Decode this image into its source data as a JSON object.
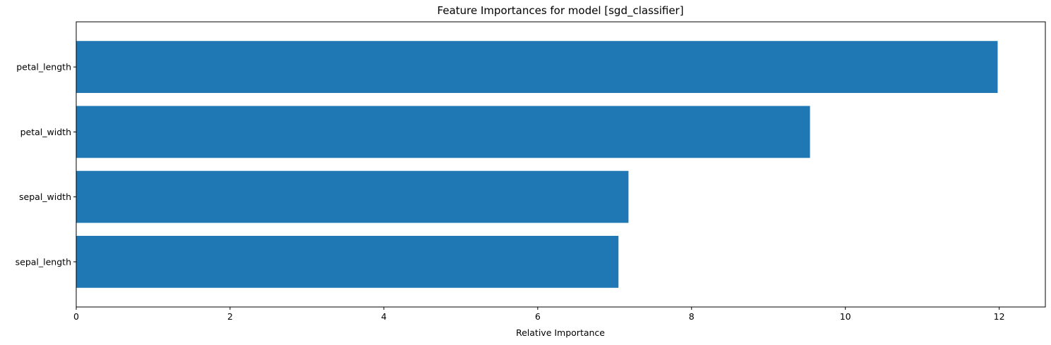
{
  "chart_data": {
    "type": "bar",
    "orientation": "horizontal",
    "title": "Feature Importances for model [sgd_classifier]",
    "xlabel": "Relative Importance",
    "ylabel": "",
    "categories": [
      "sepal_length",
      "sepal_width",
      "petal_width",
      "petal_length"
    ],
    "values": [
      7.05,
      7.18,
      9.54,
      11.98
    ],
    "xlim": [
      0,
      12.6
    ],
    "xticks": [
      0,
      2,
      4,
      6,
      8,
      10,
      12
    ],
    "grid": false,
    "legend": "none",
    "bar_color": "#1f77b4"
  }
}
